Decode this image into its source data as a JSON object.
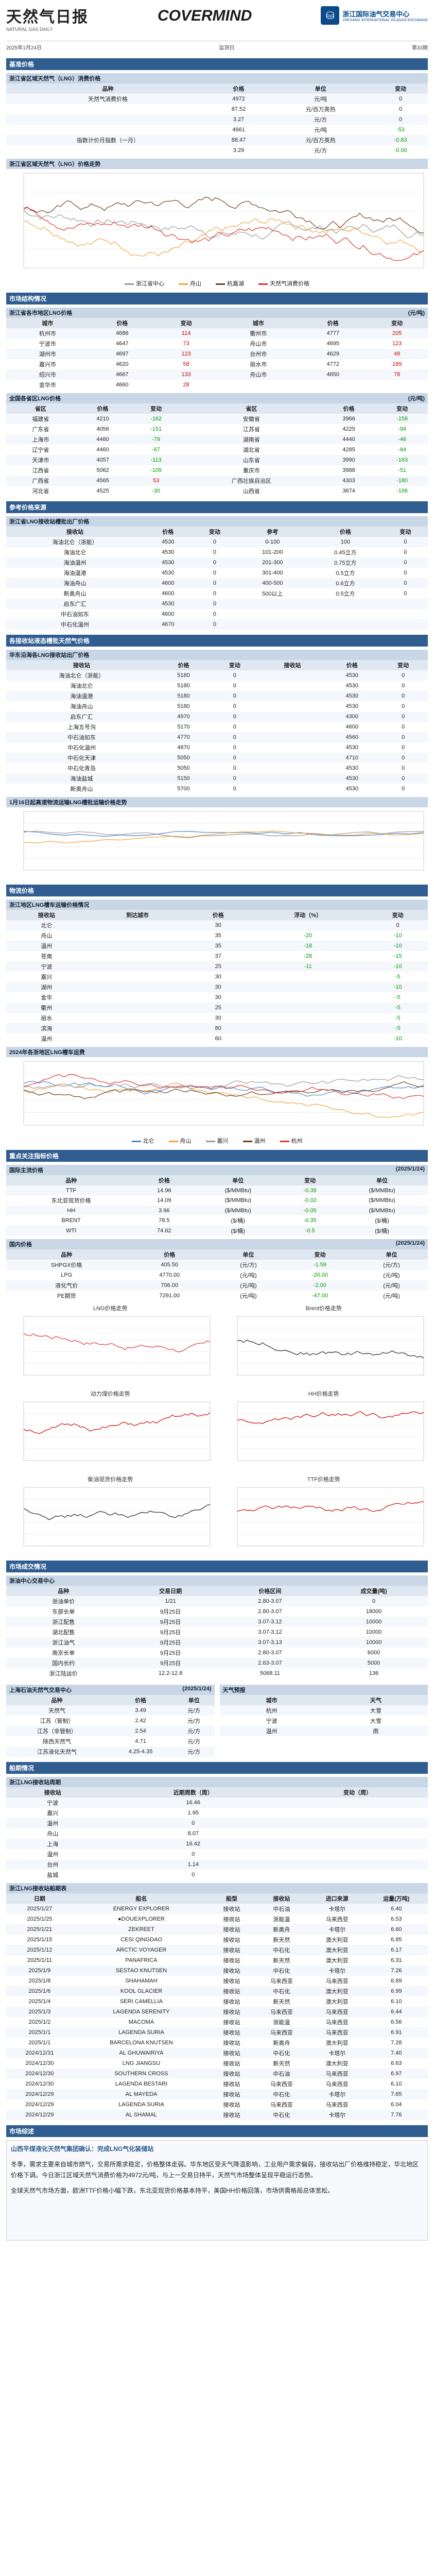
{
  "header": {
    "title": "天然气日报",
    "subtitle": "NATURAL GAS DAILY",
    "date_line": "2025年1月24日",
    "brand": "COVERMIND",
    "partner_name": "浙江国际油气交易中心",
    "partner_sub": "ZHEJIANG INTERNATIONAL OIL&GAS EXCHANGE",
    "edition": "第33期",
    "author_label": "监测日"
  },
  "index": {
    "section": "基准价格",
    "table_title": "浙江省区域天然气（LNG）消费价格",
    "cols": [
      "品种",
      "价格",
      "单位",
      "变动"
    ],
    "rows": [
      [
        "天然气消费价格",
        "4972",
        "元/吨",
        "0"
      ],
      [
        "",
        "87.52",
        "元/百万英热",
        "0"
      ],
      [
        "",
        "3.27",
        "元/方",
        "0"
      ],
      [
        "",
        "4661",
        "元/吨",
        "-53"
      ],
      [
        "指数计价月指数（一月）",
        "88.47",
        "元/百万英热",
        "-0.83"
      ],
      [
        "",
        "3.29",
        "元/方",
        "-0.00"
      ]
    ]
  },
  "main_chart": {
    "title": "浙江省区域天然气（LNG）价格走势",
    "legend": [
      "浙江省中心",
      "舟山",
      "杭嘉湖",
      "天然气消费价格"
    ]
  },
  "city_section": "市场结构情况",
  "city_table": {
    "title": "浙江省各市地区LNG价格",
    "unit": "(元/吨)",
    "cols": [
      "城市",
      "价格",
      "变动",
      "城市",
      "价格",
      "变动"
    ],
    "rows": [
      [
        "杭州市",
        "4686",
        "114",
        "衢州市",
        "4777",
        "205"
      ],
      [
        "宁波市",
        "4647",
        "73",
        "舟山市",
        "4695",
        "123"
      ],
      [
        "湖州市",
        "4697",
        "123",
        "台州市",
        "4629",
        "48"
      ],
      [
        "嘉兴市",
        "4620",
        "58",
        "丽水市",
        "4772",
        "189"
      ],
      [
        "绍兴市",
        "4667",
        "133",
        "舟山市",
        "4650",
        "78"
      ],
      [
        "金华市",
        "4660",
        "28",
        "",
        "",
        ""
      ]
    ]
  },
  "province_table": {
    "title": "全国各省区LNG价格",
    "unit": "(元/吨)",
    "cols": [
      "省区",
      "价格",
      "变动",
      "省区",
      "价格",
      "变动"
    ],
    "rows": [
      [
        "福建省",
        "4210",
        "-162",
        "安徽省",
        "3966",
        "-156"
      ],
      [
        "广东省",
        "4056",
        "-151",
        "江苏省",
        "4225",
        "-94"
      ],
      [
        "上海市",
        "4460",
        "-79",
        "湖南省",
        "4440",
        "-46"
      ],
      [
        "辽宁省",
        "4460",
        "-67",
        "湖北省",
        "4285",
        "-84"
      ],
      [
        "天津市",
        "4057",
        "-113",
        "山东省",
        "3990",
        "-163"
      ],
      [
        "江西省",
        "5062",
        "-109",
        "重庆市",
        "3988",
        "-51"
      ],
      [
        "广西省",
        "4565",
        "53",
        "广西壮族自治区",
        "4303",
        "-180"
      ],
      [
        "河北省",
        "4525",
        "-30",
        "山西省",
        "3674",
        "-196"
      ]
    ]
  },
  "receiving_title": "参考价格来源",
  "receiving_table": {
    "title": "浙江省LNG接收站槽批出厂价格",
    "cols": [
      "接收站",
      "价格",
      "变动",
      "参考",
      "价格",
      "变动"
    ],
    "rows": [
      [
        "海油北仑（浙能）",
        "4530",
        "0",
        "0-100",
        "100",
        "0"
      ],
      [
        "海油北仑",
        "4530",
        "0",
        "101-200",
        "0.45立方",
        "0"
      ],
      [
        "海油温州",
        "4530",
        "0",
        "201-300",
        "0.75立方",
        "0"
      ],
      [
        "海油温港",
        "4530",
        "0",
        "301-400",
        "0.5立方",
        "0"
      ],
      [
        "海油舟山",
        "4600",
        "0",
        "400-500",
        "0.6立方",
        "0"
      ],
      [
        "新奥舟山",
        "4600",
        "0",
        "500以上",
        "0.5立方",
        "0"
      ],
      [
        "启东广汇",
        "4530",
        "0",
        "",
        "",
        ""
      ],
      [
        "中石油如东",
        "4600",
        "0",
        "",
        "",
        ""
      ],
      [
        "中石化温州",
        "4670",
        "0",
        "",
        "",
        ""
      ]
    ]
  },
  "pipeline_title": "各接收站液态槽批天然气价格",
  "pipeline_table": {
    "title": "华东沿海各LNG接收站出厂价格",
    "cols": [
      "接收站",
      "价格",
      "变动",
      "接收站",
      "价格",
      "变动"
    ],
    "rows": [
      [
        "海油北仑（浙能）",
        "5180",
        "0",
        "",
        "4530",
        "0"
      ],
      [
        "海油北仑",
        "5180",
        "0",
        "",
        "4530",
        "0"
      ],
      [
        "海油温港",
        "5180",
        "0",
        "",
        "4530",
        "0"
      ],
      [
        "海油舟山",
        "5180",
        "0",
        "",
        "4530",
        "0"
      ],
      [
        "启东广汇",
        "4970",
        "0",
        "",
        "4300",
        "0"
      ],
      [
        "上海五号沟",
        "5170",
        "0",
        "",
        "4600",
        "0"
      ],
      [
        "中石油如东",
        "4770",
        "0",
        "",
        "4560",
        "0"
      ],
      [
        "中石化温州",
        "4870",
        "0",
        "",
        "4530",
        "0"
      ],
      [
        "中石化天津",
        "5050",
        "0",
        "",
        "4710",
        "0"
      ],
      [
        "中石化青岛",
        "5050",
        "0",
        "",
        "4530",
        "0"
      ],
      [
        "海油盐城",
        "5150",
        "0",
        "",
        "4530",
        "0"
      ],
      [
        "新奥舟山",
        "5700",
        "0",
        "",
        "4530",
        "0"
      ]
    ]
  },
  "small_chart_title": "1月16日起高速物流运输LNG槽批运输价格走势",
  "logistic_title": "物流价格",
  "logistic_table": {
    "title": "浙江地区LNG槽车运输价格情况",
    "cols": [
      "接收站",
      "到达城市",
      "价格",
      "浮动（%）",
      "变动"
    ],
    "rows": [
      [
        "北仑",
        "",
        "30",
        "",
        "0"
      ],
      [
        "舟山",
        "",
        "35",
        "-20",
        "-10"
      ],
      [
        "温州",
        "",
        "35",
        "-18",
        "-10"
      ],
      [
        "苍南",
        "",
        "37",
        "-28",
        "-15"
      ],
      [
        "宁波",
        "",
        "25",
        "-11",
        "-10"
      ],
      [
        "嘉兴",
        "",
        "30",
        "",
        "-5"
      ],
      [
        "湖州",
        "",
        "30",
        "",
        "-10"
      ],
      [
        "金华",
        "",
        "30",
        "",
        "-5"
      ],
      [
        "衢州",
        "",
        "25",
        "",
        "-5"
      ],
      [
        "丽水",
        "",
        "30",
        "",
        "-5"
      ],
      [
        "滨海",
        "",
        "80",
        "",
        "-5"
      ],
      [
        "温州",
        "",
        "60",
        "",
        "-10"
      ]
    ]
  },
  "transport_chart": {
    "title": "2024年各浙地区LNG槽车运费",
    "legend": [
      "北仑",
      "舟山",
      "嘉兴",
      "温州",
      "杭州"
    ]
  },
  "intl_section": "重点关注指标价格",
  "intl_table": {
    "title": "国际主流价格",
    "date": "(2025/1/24)",
    "cols": [
      "品种",
      "价格",
      "单位",
      "变动",
      "单位"
    ],
    "rows": [
      [
        "TTF",
        "14.96",
        "($/MMBtu)",
        "-0.39",
        "($/MMBtu)"
      ],
      [
        "东北亚现货价格",
        "14.09",
        "($/MMBtu)",
        "-0.02",
        "($/MMBtu)"
      ],
      [
        "HH",
        "3.96",
        "($/MMBtu)",
        "-0.05",
        "($/MMBtu)"
      ],
      [
        "BRENT",
        "78.5",
        "($/桶)",
        "-0.35",
        "($/桶)"
      ],
      [
        "WTI",
        "74.62",
        "($/桶)",
        "-0.5",
        "($/桶)"
      ]
    ]
  },
  "dom_table": {
    "title": "国内价格",
    "date": "(2025/1/24)",
    "cols": [
      "品种",
      "价格",
      "单位",
      "变动",
      "单位"
    ],
    "rows": [
      [
        "SHPGX价格",
        "405.50",
        "(元/方)",
        "-1.59",
        "(元/方)"
      ],
      [
        "LPG",
        "4770.00",
        "(元/吨)",
        "-20.00",
        "(元/吨)"
      ],
      [
        "液化气价",
        "706.00",
        "(元/吨)",
        "-2.00",
        "(元/吨)"
      ],
      [
        "PE期货",
        "7291.00",
        "(元/吨)",
        "-47.00",
        "(元/吨)"
      ]
    ]
  },
  "mini_charts": [
    {
      "title": "LNG价格走势"
    },
    {
      "title": "Brent价格走势"
    },
    {
      "title": "动力煤价格走势"
    },
    {
      "title": "HH价格走势"
    },
    {
      "title": "柴油现货价格走势"
    },
    {
      "title": "TTF价格走势"
    }
  ],
  "market_section": "市场成交情况",
  "trading_table": {
    "title": "浙油中心交易中心",
    "cols": [
      "品种",
      "交易日期",
      "价格区间",
      "成交量(吨)"
    ],
    "rows": [
      [
        "浙油单价",
        "1/21",
        "2.80-3.07",
        "0"
      ],
      [
        "东部长单",
        "9月25日",
        "2.80-3.07",
        "18000"
      ],
      [
        "浙江配售",
        "9月25日",
        "3.07-3.12",
        "10000"
      ],
      [
        "湖北配售",
        "9月25日",
        "3.07-3.12",
        "10000"
      ],
      [
        "浙江油气",
        "9月25日",
        "3.07-3.13",
        "10000"
      ],
      [
        "南京长单",
        "9月25日",
        "2.80-3.07",
        "6000"
      ],
      [
        "国内长约",
        "9月25日",
        "2.63-3.07",
        "5000"
      ],
      [
        "浙江陆运价",
        "12.2-12.8",
        "5068.11",
        "136"
      ]
    ]
  },
  "weather_title": "天气预报",
  "sh_table": {
    "title": "上海石油天然气交易中心",
    "date": "(2025/1/24)",
    "cols": [
      "品种",
      "价格",
      "单位"
    ],
    "rows": [
      [
        "天然气",
        "3.49",
        "元/方"
      ],
      [
        "江苏（管制）",
        "2.42",
        "元/方"
      ],
      [
        "江苏（非管制）",
        "2.54",
        "元/方"
      ],
      [
        "陕西天然气",
        "4.71",
        "元/方"
      ],
      [
        "江苏液化天然气",
        "4.25-4.35",
        "元/方"
      ]
    ]
  },
  "weather": [
    [
      "城市",
      "天气"
    ],
    [
      "杭州",
      "大雪"
    ],
    [
      "宁波",
      "大雪"
    ],
    [
      "温州",
      "雨"
    ]
  ],
  "shipping_section": "船期情况",
  "terminal_table": {
    "title": "浙江LNG接收站周期",
    "cols": [
      "接收站",
      "近期周数（周）",
      "变动（周）"
    ],
    "rows": [
      [
        "宁波",
        "16.46",
        ""
      ],
      [
        "嘉兴",
        "1.95",
        ""
      ],
      [
        "温州",
        "0",
        ""
      ],
      [
        "舟山",
        "8.07",
        ""
      ],
      [
        "上海",
        "16.42",
        ""
      ],
      [
        "温州",
        "0",
        ""
      ],
      [
        "台州",
        "1.14",
        ""
      ],
      [
        "盐城",
        "0",
        ""
      ]
    ]
  },
  "ship_table": {
    "title": "浙江LNG接收站船期表",
    "cols": [
      "日期",
      "船名",
      "船型",
      "接收站",
      "进口来源",
      "运量(万吨)"
    ],
    "rows": [
      [
        "2025/1/27",
        "ENERGY EXPLORER",
        "接收站",
        "中石油",
        "卡塔尔",
        "6.40"
      ],
      [
        "2025/1/25",
        "●DOUEXPLORER",
        "接收站",
        "浙能温",
        "马来西亚",
        "6.53"
      ],
      [
        "2025/1/21",
        "ZEKREET",
        "接收站",
        "新奥舟",
        "卡塔尔",
        "6.60"
      ],
      [
        "2025/1/15",
        "CESI QINGDAO",
        "接收站",
        "新天然",
        "澳大利亚",
        "6.85"
      ],
      [
        "2025/1/12",
        "ARCTIC VOYAGER",
        "接收站",
        "中石化",
        "澳大利亚",
        "6.17"
      ],
      [
        "2025/1/11",
        "PANAFRICA",
        "接收站",
        "新天然",
        "澳大利亚",
        "6.31"
      ],
      [
        "2025/1/9",
        "SESTAO KNUTSEN",
        "接收站",
        "中石化",
        "卡塔尔",
        "7.26"
      ],
      [
        "2025/1/8",
        "SHAHAMAH",
        "接收站",
        "马来西亚",
        "马来西亚",
        "6.89"
      ],
      [
        "2025/1/6",
        "KOOL GLACIER",
        "接收站",
        "中石化",
        "澳大利亚",
        "6.99"
      ],
      [
        "2025/1/4",
        "SERI CAMELLIA",
        "接收站",
        "新天然",
        "澳大利亚",
        "6.10"
      ],
      [
        "2025/1/3",
        "LAGENDA SERENITY",
        "接收站",
        "马来西亚",
        "马来西亚",
        "6.44"
      ],
      [
        "2025/1/2",
        "MACOMA",
        "接收站",
        "浙能温",
        "马来西亚",
        "6.56"
      ],
      [
        "2025/1/1",
        "LAGENDA SURIA",
        "接收站",
        "马来西亚",
        "马来西亚",
        "6.91"
      ],
      [
        "2025/1/1",
        "BARCELONA KNUTSEN",
        "接收站",
        "新奥舟",
        "澳大利亚",
        "7.28"
      ],
      [
        "2024/12/31",
        "AL GHUWAIRIYA",
        "接收站",
        "中石化",
        "卡塔尔",
        "7.40"
      ],
      [
        "2024/12/30",
        "LNG JIANGSU",
        "接收站",
        "新天然",
        "澳大利亚",
        "6.63"
      ],
      [
        "2024/12/30",
        "SOUTHERN CROSS",
        "接收站",
        "中石油",
        "马来西亚",
        "6.97"
      ],
      [
        "2024/12/30",
        "LAGENDA BESTARI",
        "接收站",
        "马来西亚",
        "马来西亚",
        "6.10"
      ],
      [
        "2024/12/29",
        "AL MAYEDA",
        "接收站",
        "中石化",
        "卡塔尔",
        "7.65"
      ],
      [
        "2024/12/29",
        "LAGENDA SURIA",
        "接收站",
        "马来西亚",
        "马来西亚",
        "6.04"
      ],
      [
        "2024/12/29",
        "AL SHAMAL",
        "接收站",
        "中石化",
        "卡塔尔",
        "7.76"
      ]
    ]
  },
  "comment": {
    "section": "市场综述",
    "paras": [
      "山西平煤液化天然气集团确认：完成LNG气化装储站",
      "冬季，需求主要来自城市燃气，交易所需求稳定，价格整体走弱。华东地区受天气降温影响，工业用户需求偏弱，接收站出厂价格维持稳定，华北地区价格下调。今日浙江区域天然气消费价格为4972元/吨，与上一交易日持平，天然气市场整体呈现平稳运行态势。",
      "全球天然气市场方面，欧洲TTF价格小幅下跌，东北亚现货价格基本持平，美国HH价格回落，市场供需格局总体宽松。"
    ]
  }
}
